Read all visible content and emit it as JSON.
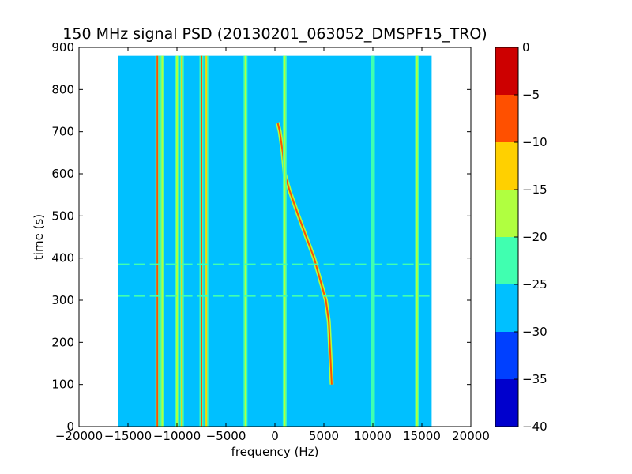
{
  "chart_data": {
    "type": "heatmap",
    "title": "150 MHz signal PSD (20130201_063052_DMSPF15_TRO)",
    "xlabel": "frequency (Hz)",
    "ylabel": "time (s)",
    "xlim": [
      -20000,
      20000
    ],
    "ylim": [
      0,
      900
    ],
    "xticks": [
      -20000,
      -15000,
      -10000,
      -5000,
      0,
      5000,
      10000,
      15000,
      20000
    ],
    "yticks": [
      0,
      100,
      200,
      300,
      400,
      500,
      600,
      700,
      800,
      900
    ],
    "data_extent": {
      "x": [
        -16000,
        16000
      ],
      "y": [
        0,
        880
      ]
    },
    "colorbar": {
      "ticks": [
        0,
        -5,
        -10,
        -15,
        -20,
        -25,
        -30,
        -35,
        -40
      ],
      "levels": [
        -40,
        -35,
        -30,
        -25,
        -20,
        -15,
        -10,
        -5,
        0
      ],
      "colors": [
        "#0000cd",
        "#0040ff",
        "#00c0ff",
        "#40ffb0",
        "#b0ff40",
        "#ffd000",
        "#ff5000",
        "#cd0000"
      ]
    },
    "background_level": -27.5,
    "features": [
      {
        "name": "doppler-trace",
        "level": -7.5,
        "points": [
          [
            5800,
            100
          ],
          [
            5700,
            150
          ],
          [
            5500,
            250
          ],
          [
            5200,
            300
          ],
          [
            4600,
            350
          ],
          [
            4000,
            400
          ],
          [
            3200,
            450
          ],
          [
            2400,
            500
          ],
          [
            1500,
            560
          ],
          [
            1000,
            600
          ],
          [
            800,
            650
          ],
          [
            500,
            700
          ],
          [
            300,
            720
          ]
        ]
      },
      {
        "name": "line-12000",
        "x": -12000,
        "level": -7.5
      },
      {
        "name": "line-11500",
        "x": -11500,
        "level": -17.5
      },
      {
        "name": "line-10000",
        "x": -10000,
        "level": -17.5
      },
      {
        "name": "line-9500",
        "x": -9500,
        "level": -12.5
      },
      {
        "name": "line-7500",
        "x": -7500,
        "level": -7.5
      },
      {
        "name": "line-7000",
        "x": -7000,
        "level": -12.5
      },
      {
        "name": "line-3000",
        "x": -3000,
        "level": -17.5
      },
      {
        "name": "line-1000",
        "x": 1000,
        "level": -17.5
      },
      {
        "name": "line-10000p",
        "x": 10000,
        "level": -22.5
      },
      {
        "name": "line-14500",
        "x": 14500,
        "level": -17.5
      }
    ],
    "horizontal_streaks": [
      385,
      310
    ]
  }
}
